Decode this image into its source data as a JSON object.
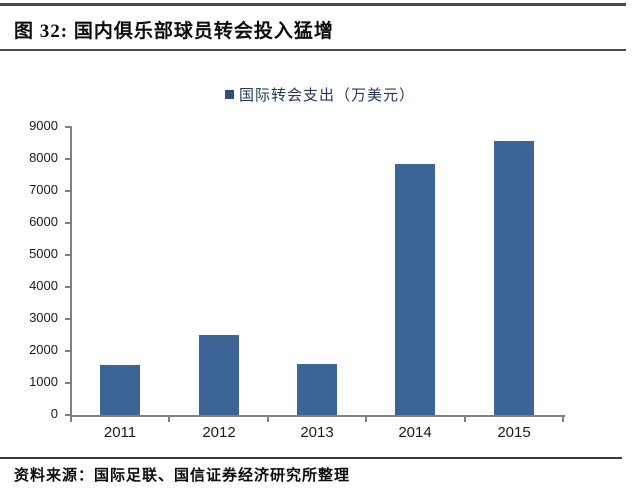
{
  "header": {
    "title": "图 32:  国内俱乐部球员转会投入猛增"
  },
  "footer": {
    "source": "资料来源：国际足联、国信证券经济研究所整理"
  },
  "colors": {
    "bar": "#3c6496",
    "legend_marker": "#2e4d7d",
    "axis": "#808080",
    "rule": "#4a4a4a"
  },
  "chart_data": {
    "type": "bar",
    "title": "国内俱乐部球员转会投入猛增",
    "series_name": "国际转会支出（万美元）",
    "categories": [
      "2011",
      "2012",
      "2013",
      "2014",
      "2015"
    ],
    "values": [
      1550,
      2500,
      1600,
      7850,
      8550
    ],
    "xlabel": "",
    "ylabel": "",
    "ylim": [
      0,
      9000
    ],
    "y_ticks": [
      0,
      1000,
      2000,
      3000,
      4000,
      5000,
      6000,
      7000,
      8000,
      9000
    ],
    "grid": false,
    "legend_position": "top-center"
  }
}
